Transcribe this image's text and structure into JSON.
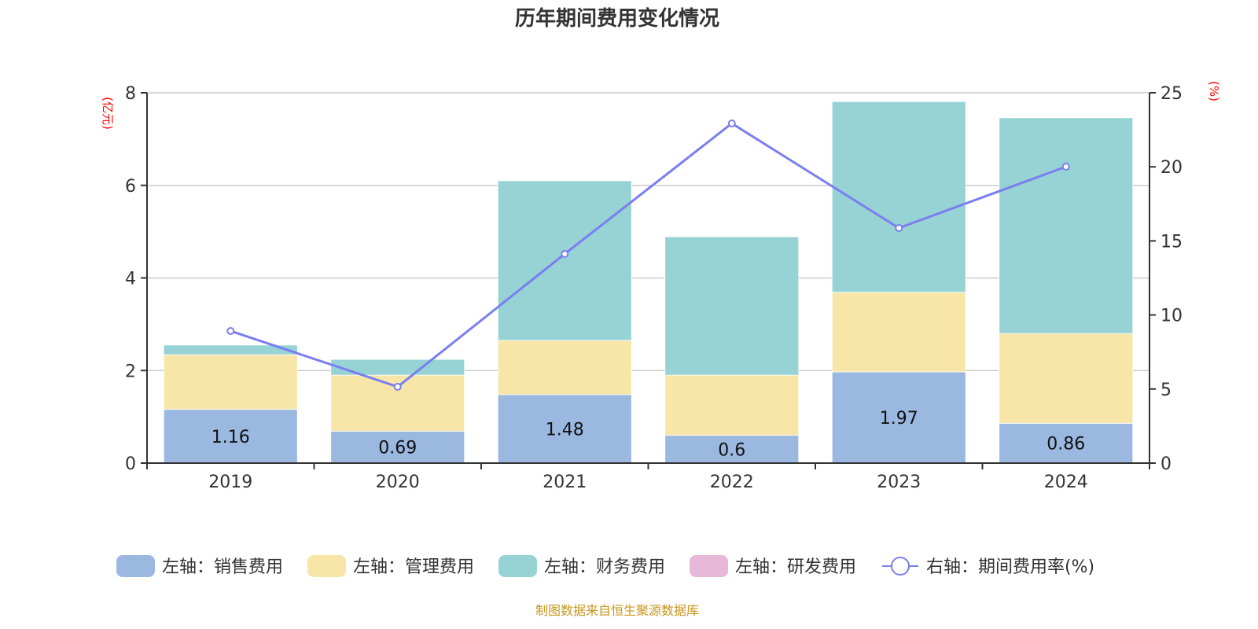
{
  "chart_data": {
    "type": "bar",
    "title": "历年期间费用变化情况",
    "categories": [
      "2019",
      "2020",
      "2021",
      "2022",
      "2023",
      "2024"
    ],
    "left_axis": {
      "unit_label": "(亿元)",
      "range": [
        0,
        8
      ],
      "ticks": [
        0,
        2,
        4,
        6,
        8
      ]
    },
    "right_axis": {
      "unit_label": "(%)",
      "range": [
        0,
        25
      ],
      "ticks": [
        0,
        5,
        10,
        15,
        20,
        25
      ]
    },
    "grid": true,
    "stacked": true,
    "series": [
      {
        "name": "左轴：销售费用",
        "type": "bar",
        "axis": "left",
        "color": "#9bb8e1",
        "values": [
          1.16,
          0.69,
          1.48,
          0.6,
          1.97,
          0.86
        ],
        "show_labels": true
      },
      {
        "name": "左轴：管理费用",
        "type": "bar",
        "axis": "left",
        "color": "#f8e6a9",
        "values": [
          1.18,
          1.21,
          1.17,
          1.3,
          1.72,
          1.94
        ],
        "show_labels": false
      },
      {
        "name": "左轴：财务费用",
        "type": "bar",
        "axis": "left",
        "color": "#97d3d4",
        "values": [
          0.21,
          0.34,
          3.45,
          2.99,
          4.12,
          4.66
        ],
        "show_labels": false
      },
      {
        "name": "左轴：研发费用",
        "type": "bar",
        "axis": "left",
        "color": "#e8b8d8",
        "values": [
          0,
          0,
          0,
          0,
          0,
          0
        ],
        "show_labels": false
      },
      {
        "name": "右轴：期间费用率(%)",
        "type": "line",
        "axis": "right",
        "color": "#7b7ef0",
        "values": [
          8.92,
          5.15,
          14.12,
          22.93,
          15.87,
          20.01
        ]
      }
    ],
    "legend_position": "bottom",
    "source": "制图数据来自恒生聚源数据库"
  }
}
